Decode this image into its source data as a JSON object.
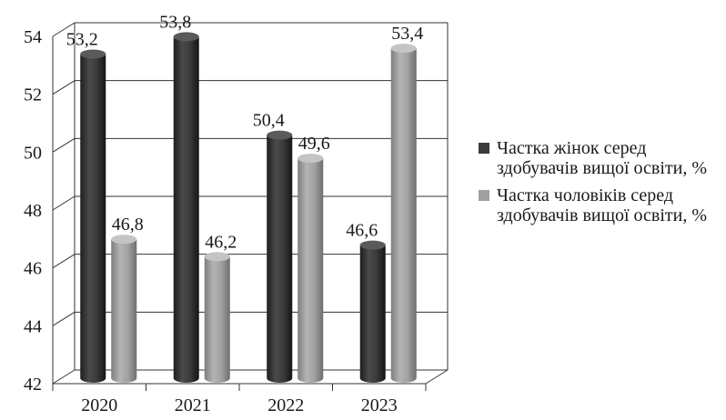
{
  "chart_data": {
    "type": "bar",
    "categories": [
      "2020",
      "2021",
      "2022",
      "2023"
    ],
    "series": [
      {
        "name": "Частка жінок серед здобувачів вищої освіти, %",
        "values": [
          53.2,
          53.8,
          50.4,
          46.6
        ],
        "labels": [
          "53,2",
          "53,8",
          "50,4",
          "46,6"
        ],
        "color": "#3a3a3a"
      },
      {
        "name": "Частка чоловіків серед здобувачів вищої освіти, %",
        "values": [
          46.8,
          46.2,
          49.6,
          53.4
        ],
        "labels": [
          "46,8",
          "46,2",
          "49,6",
          "53,4"
        ],
        "color": "#a0a0a0"
      }
    ],
    "yticks": [
      "42",
      "44",
      "46",
      "48",
      "50",
      "52",
      "54"
    ],
    "ylim": [
      42,
      54
    ],
    "grid": true,
    "legend_position": "right"
  }
}
